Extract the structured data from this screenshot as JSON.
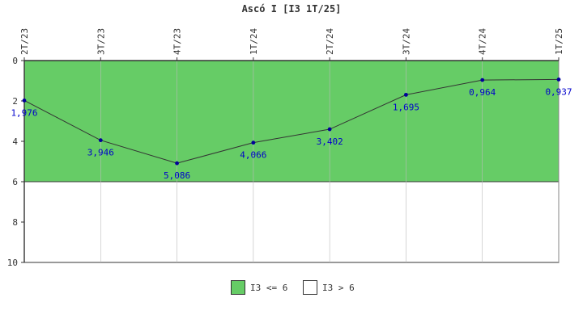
{
  "chart_data": {
    "type": "line",
    "title": "Ascó I [I3 1T/25]",
    "categories": [
      "2T/23",
      "3T/23",
      "4T/23",
      "1T/24",
      "2T/24",
      "3T/24",
      "4T/24",
      "1T/25"
    ],
    "series": [
      {
        "values": [
          1.976,
          3.946,
          5.086,
          4.066,
          3.402,
          1.695,
          0.964,
          0.937
        ]
      }
    ],
    "value_labels": [
      "1,976",
      "3,946",
      "5,086",
      "4,066",
      "3,402",
      "1,695",
      "0,964",
      "0,937"
    ],
    "y_ticks": [
      "0",
      "2",
      "4",
      "6",
      "8",
      "10"
    ],
    "ylim": [
      0,
      10
    ],
    "y_inverted": true,
    "threshold": 6,
    "bands": [
      {
        "label": "I3 <= 6",
        "from": 0,
        "to": 6,
        "color": "#66cc66"
      },
      {
        "label": "I3 > 6",
        "from": 6,
        "to": 10,
        "color": "#ffffff"
      }
    ],
    "legend_position": "bottom",
    "colors": {
      "line": "#333333",
      "point": "#000099",
      "label": "#0000cc",
      "axis": "#333333"
    }
  }
}
